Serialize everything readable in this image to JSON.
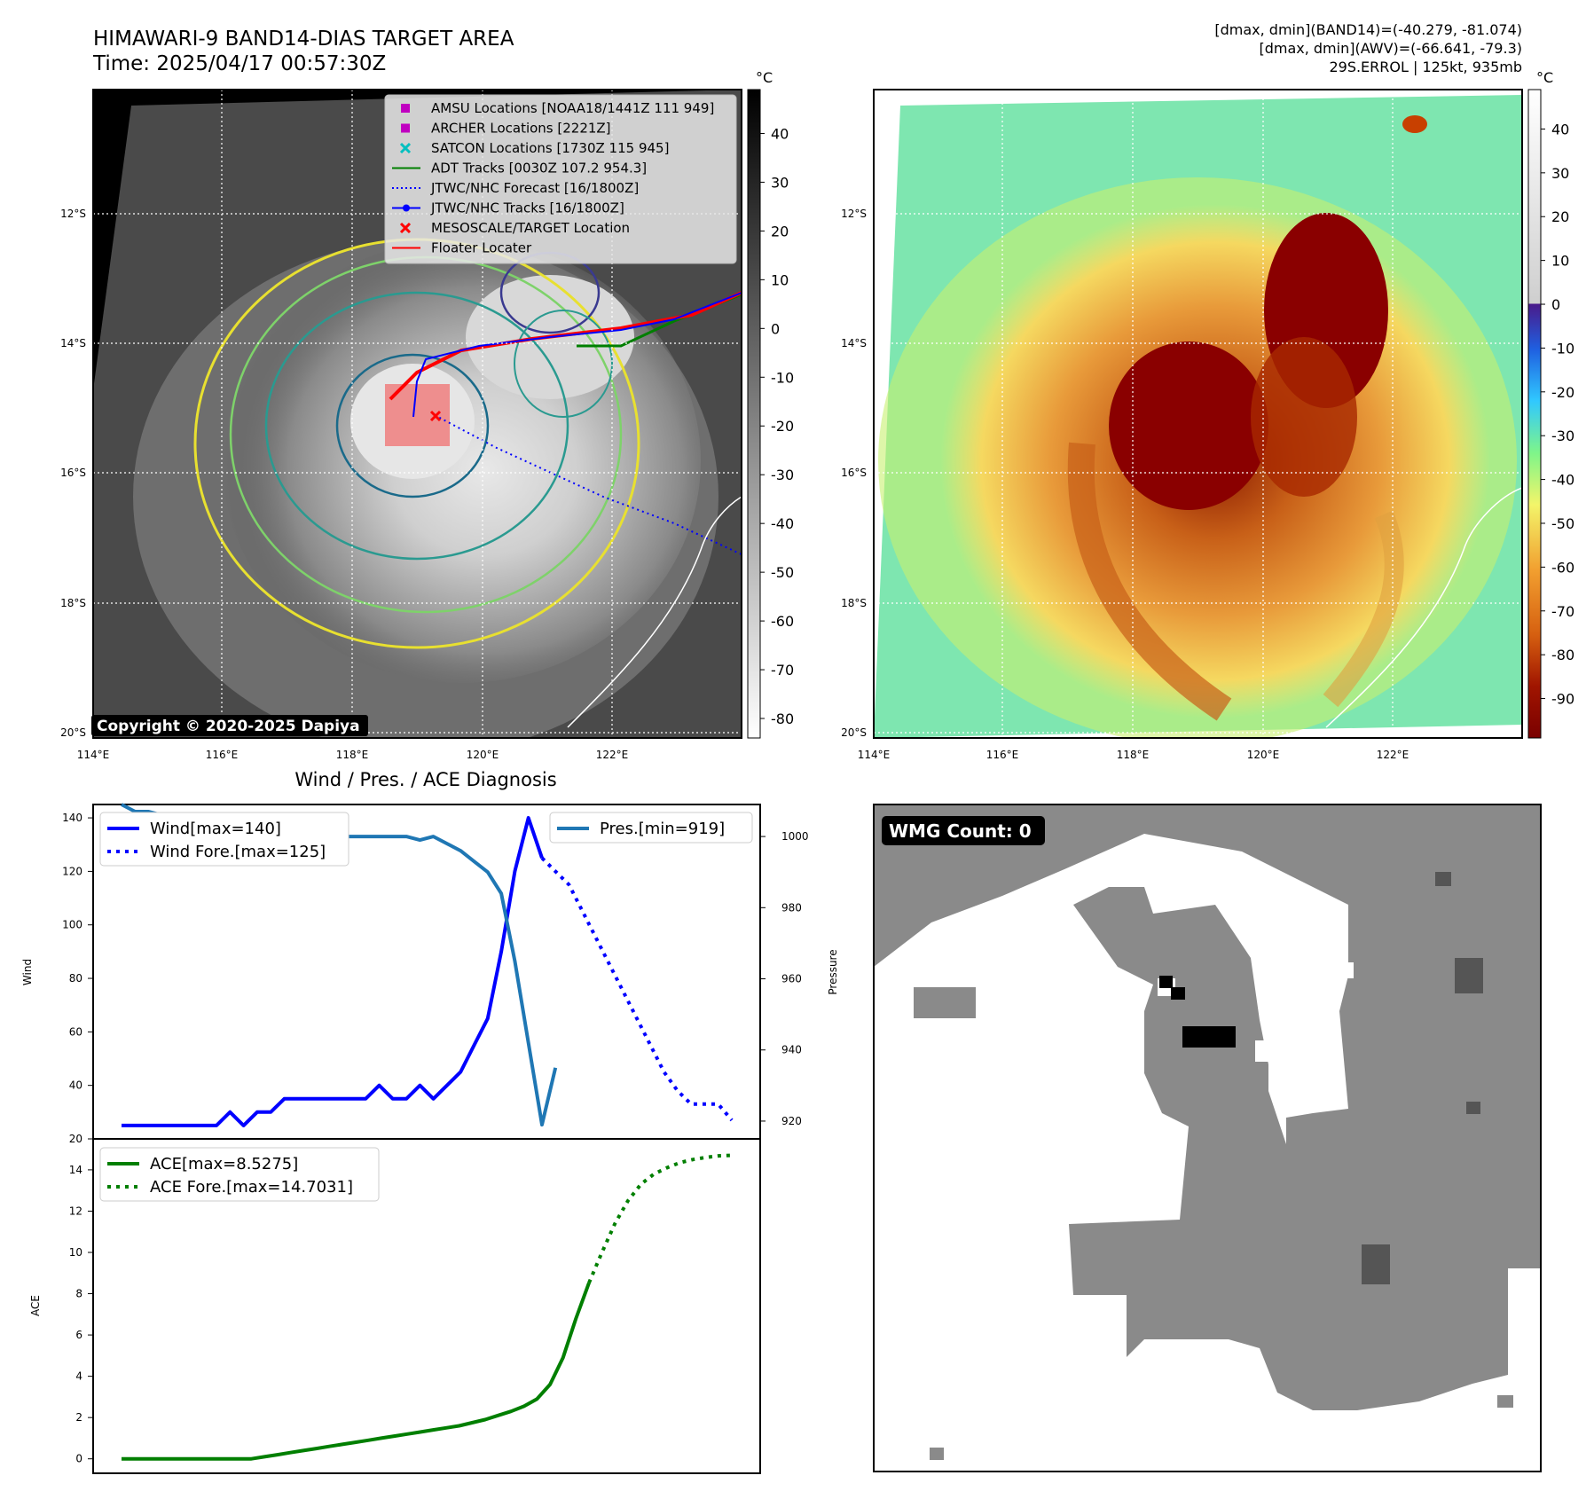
{
  "header": {
    "title": "HIMAWARI-9 BAND14-DIAS TARGET AREA",
    "time": "Time: 2025/04/17 00:57:30Z",
    "stats_line1": "[dmax, dmin](BAND14)=(-40.279, -81.074)",
    "stats_line2": "[dmax, dmin](AWV)=(-66.641, -79.3)",
    "storm_line": "29S.ERROL | 125kt, 935mb"
  },
  "map_ir": {
    "copyright": "Copyright © 2020-2025 Dapiya",
    "legend": [
      {
        "label": "AMSU Locations [NOAA18/1441Z 111 949]",
        "kind": "square",
        "color": "#c000c0"
      },
      {
        "label": "ARCHER Locations [2221Z]",
        "kind": "square",
        "color": "#c000c0"
      },
      {
        "label": "SATCON Locations [1730Z 115 945]",
        "kind": "x",
        "color": "#00bfbf"
      },
      {
        "label": "ADT Tracks [0030Z 107.2 954.3]",
        "kind": "line",
        "color": "#007f00"
      },
      {
        "label": "JTWC/NHC Forecast [16/1800Z]",
        "kind": "dotted",
        "color": "#0000ff"
      },
      {
        "label": "JTWC/NHC Tracks [16/1800Z]",
        "kind": "line-dot",
        "color": "#0000ff"
      },
      {
        "label": "MESOSCALE/TARGET Location",
        "kind": "x",
        "color": "#ff0000"
      },
      {
        "label": "Floater Locater",
        "kind": "line",
        "color": "#ff0000"
      }
    ],
    "colorbar": {
      "unit": "°C",
      "ticks": [
        40,
        30,
        20,
        10,
        0,
        -10,
        -20,
        -30,
        -40,
        -50,
        -60,
        -70,
        -80
      ]
    }
  },
  "map_color": {
    "colorbar": {
      "unit": "°C",
      "ticks": [
        40,
        30,
        20,
        10,
        0,
        -10,
        -20,
        -30,
        -40,
        -50,
        -60,
        -70,
        -80,
        -90
      ]
    }
  },
  "map_axes": {
    "lat_labels": [
      "12°S",
      "14°S",
      "16°S",
      "18°S",
      "20°S"
    ],
    "lon_labels": [
      "114°E",
      "116°E",
      "118°E",
      "120°E",
      "122°E"
    ]
  },
  "wmg": {
    "label": "WMG Count: 0"
  },
  "colors": {
    "wind": "#0000ff",
    "pressure": "#1f77b4",
    "ace": "#007f00"
  },
  "chart_data": [
    {
      "type": "line",
      "title": "Wind / Pres. / ACE Diagnosis",
      "ylabel": "Wind",
      "y2label": "Pressure",
      "ylim": [
        20,
        145
      ],
      "y2lim": [
        915,
        1009
      ],
      "yticks": [
        20,
        40,
        60,
        80,
        100,
        120,
        140
      ],
      "y2ticks": [
        920,
        940,
        960,
        980,
        1000
      ],
      "grid": false,
      "series": [
        {
          "name": "Wind[max=140]",
          "axis": "left",
          "style": "solid",
          "values": [
            25,
            25,
            25,
            25,
            25,
            25,
            25,
            25,
            30,
            25,
            30,
            30,
            35,
            35,
            35,
            35,
            35,
            35,
            35,
            40,
            35,
            35,
            40,
            35,
            40,
            45,
            55,
            65,
            90,
            120,
            140,
            125
          ]
        },
        {
          "name": "Wind Fore.[max=125]",
          "axis": "left",
          "style": "dotted",
          "values": [
            null,
            null,
            null,
            null,
            null,
            null,
            null,
            null,
            null,
            null,
            null,
            null,
            null,
            null,
            null,
            null,
            null,
            null,
            null,
            null,
            null,
            null,
            null,
            null,
            null,
            null,
            null,
            null,
            null,
            null,
            null,
            125,
            120,
            115,
            105,
            95,
            85,
            75,
            65,
            55,
            45,
            38,
            33,
            33,
            33,
            27
          ]
        },
        {
          "name": "Pres.[min=919]",
          "axis": "right",
          "style": "solid",
          "values": [
            1009,
            1007,
            1007,
            1006,
            1005,
            1003,
            1002,
            1001,
            1000,
            1000,
            1000,
            1000,
            1000,
            1000,
            1000,
            1000,
            1000,
            1000,
            1000,
            1000,
            1000,
            1000,
            999,
            1000,
            998,
            996,
            993,
            990,
            984,
            965,
            942,
            919,
            935
          ]
        }
      ]
    },
    {
      "type": "line",
      "ylabel": "ACE",
      "ylim": [
        -0.7,
        15.5
      ],
      "yticks": [
        0,
        2,
        4,
        6,
        8,
        10,
        12,
        14
      ],
      "grid": false,
      "series": [
        {
          "name": "ACE[max=8.5275]",
          "style": "solid",
          "values": [
            0,
            0,
            0,
            0,
            0,
            0,
            0,
            0,
            0,
            0,
            0,
            0.1,
            0.2,
            0.3,
            0.4,
            0.5,
            0.6,
            0.7,
            0.8,
            0.9,
            1.0,
            1.1,
            1.2,
            1.3,
            1.4,
            1.5,
            1.6,
            1.75,
            1.9,
            2.1,
            2.3,
            2.55,
            2.9,
            3.6,
            4.9,
            6.8,
            8.5275
          ]
        },
        {
          "name": "ACE Fore.[max=14.7031]",
          "style": "dotted",
          "values": [
            null,
            null,
            null,
            null,
            null,
            null,
            null,
            null,
            null,
            null,
            null,
            null,
            null,
            null,
            null,
            null,
            null,
            null,
            null,
            null,
            null,
            null,
            null,
            null,
            null,
            null,
            null,
            null,
            null,
            null,
            null,
            null,
            null,
            null,
            null,
            null,
            8.5275,
            10.0,
            11.4,
            12.5,
            13.3,
            13.8,
            14.1,
            14.35,
            14.5,
            14.6,
            14.68,
            14.7031
          ]
        }
      ]
    }
  ]
}
